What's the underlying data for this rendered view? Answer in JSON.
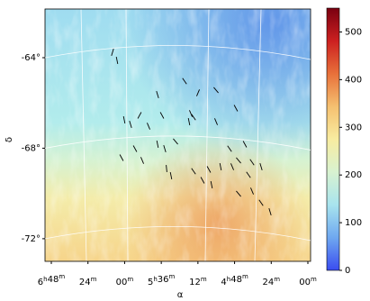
{
  "chart_data": {
    "type": "map",
    "xlabel": "α",
    "ylabel": "δ",
    "ylim": [
      -61.85,
      -73.0
    ],
    "yticks": [
      {
        "value": -64,
        "label": "-64°"
      },
      {
        "value": -68,
        "label": "-68°"
      },
      {
        "value": -72,
        "label": "-72°"
      }
    ],
    "xticks": [
      "6h48m",
      "24m",
      "00m",
      "5h36m",
      "12m",
      "4h48m",
      "24m",
      "00m"
    ],
    "colorbar": {
      "lim": [
        0,
        550
      ],
      "ticks": [
        0,
        100,
        200,
        300,
        400,
        500
      ],
      "colormap": [
        "#3a4cf0",
        "#6fa8f0",
        "#a8e4ee",
        "#d8f2d0",
        "#f8eca0",
        "#f5c070",
        "#e8703a",
        "#cc2020",
        "#7a0010"
      ]
    }
  }
}
